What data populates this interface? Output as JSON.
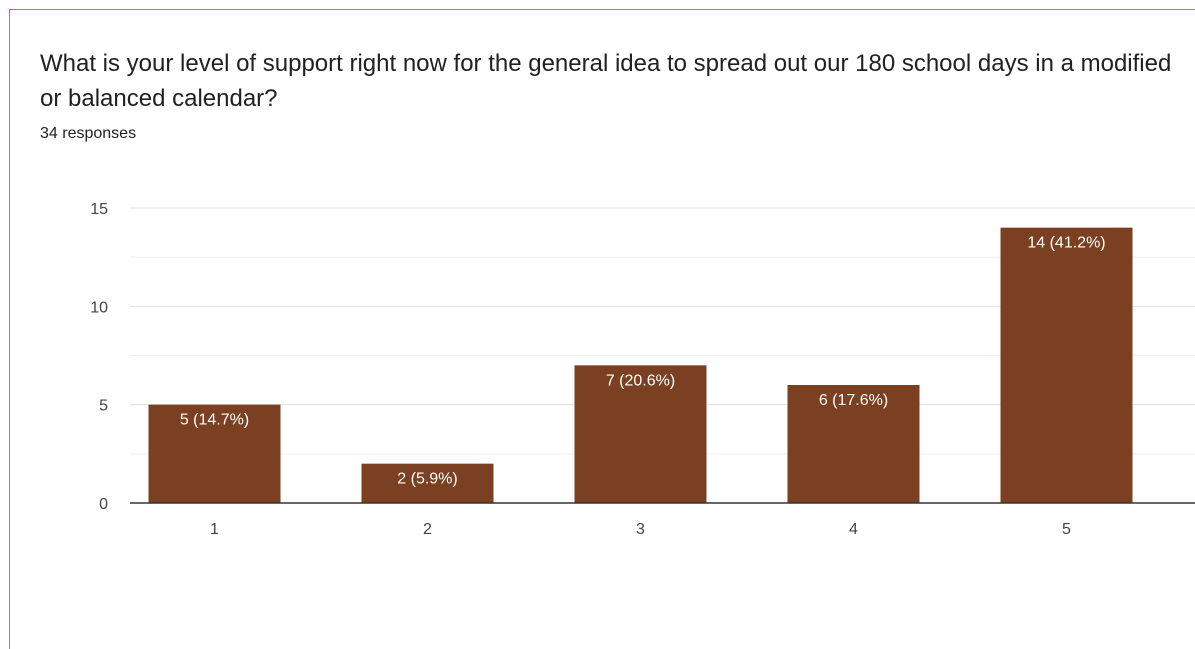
{
  "question": {
    "title": "What is your level of support right now for the general idea to spread out our 180 school days in a modified or balanced calendar?",
    "responses": "34 responses"
  },
  "colors": {
    "bar": "#7b3f22",
    "card_border": "#24b3ad",
    "grid": "#e8e8e8",
    "axis": "#333333",
    "bar_label": "#ffffff"
  },
  "chart_data": {
    "type": "bar",
    "categories": [
      "1",
      "2",
      "3",
      "4",
      "5"
    ],
    "values": [
      5,
      2,
      7,
      6,
      14
    ],
    "labels": [
      "5 (14.7%)",
      "2 (5.9%)",
      "7 (20.6%)",
      "6 (17.6%)",
      "14 (41.2%)"
    ],
    "ylim": [
      0,
      15
    ],
    "yticks": [
      "0",
      "5",
      "10",
      "15"
    ],
    "grid": true,
    "legend": "none"
  }
}
